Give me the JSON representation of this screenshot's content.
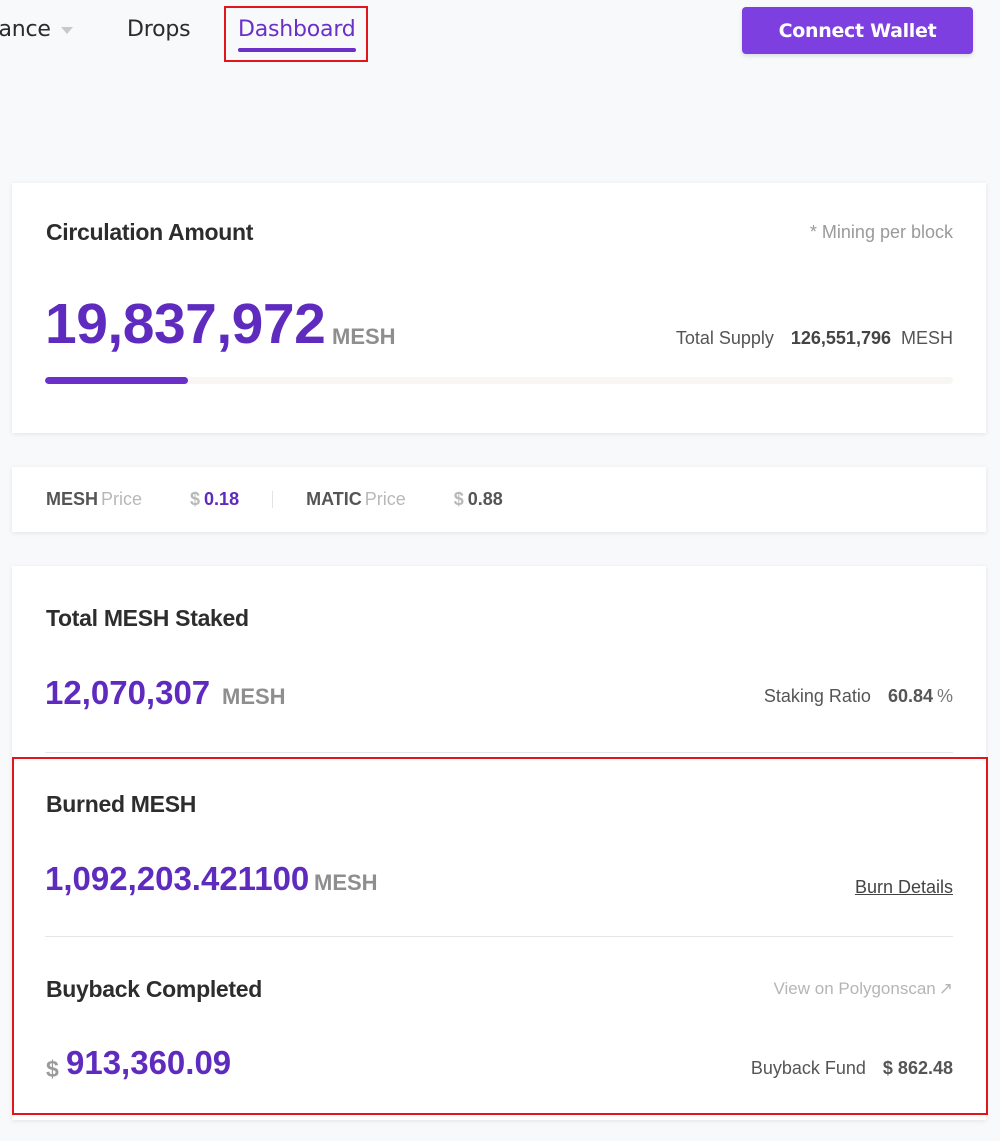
{
  "nav": {
    "finance_label": "Finance",
    "drops_label": "Drops",
    "dashboard_label": "Dashboard",
    "connect_wallet_label": "Connect Wallet"
  },
  "circulation": {
    "title": "Circulation Amount",
    "note": "* Mining per block",
    "amount": "19,837,972",
    "unit": "MESH",
    "total_supply_label": "Total Supply",
    "total_supply_value": "126,551,796",
    "total_supply_unit": "MESH",
    "progress_fraction": 0.157
  },
  "prices": {
    "mesh_symbol": "MESH",
    "mesh_word": "Price",
    "mesh_currency": "$",
    "mesh_value": "0.18",
    "matic_symbol": "MATIC",
    "matic_word": "Price",
    "matic_currency": "$",
    "matic_value": "0.88"
  },
  "staked": {
    "title": "Total MESH Staked",
    "amount": "12,070,307",
    "unit": "MESH",
    "ratio_label": "Staking Ratio",
    "ratio_value": "60.84",
    "ratio_unit": "%"
  },
  "burned": {
    "title": "Burned MESH",
    "amount": "1,092,203.421100",
    "unit": "MESH",
    "details_link": "Burn Details"
  },
  "buyback": {
    "title": "Buyback Completed",
    "polygonscan_link": "View on Polygonscan",
    "currency": "$",
    "amount": "913,360.09",
    "fund_label": "Buyback Fund",
    "fund_value": "$ 862.48"
  },
  "colors": {
    "accent": "#5f2bbf",
    "button": "#7d3fe0",
    "highlight": "#e0161b"
  }
}
